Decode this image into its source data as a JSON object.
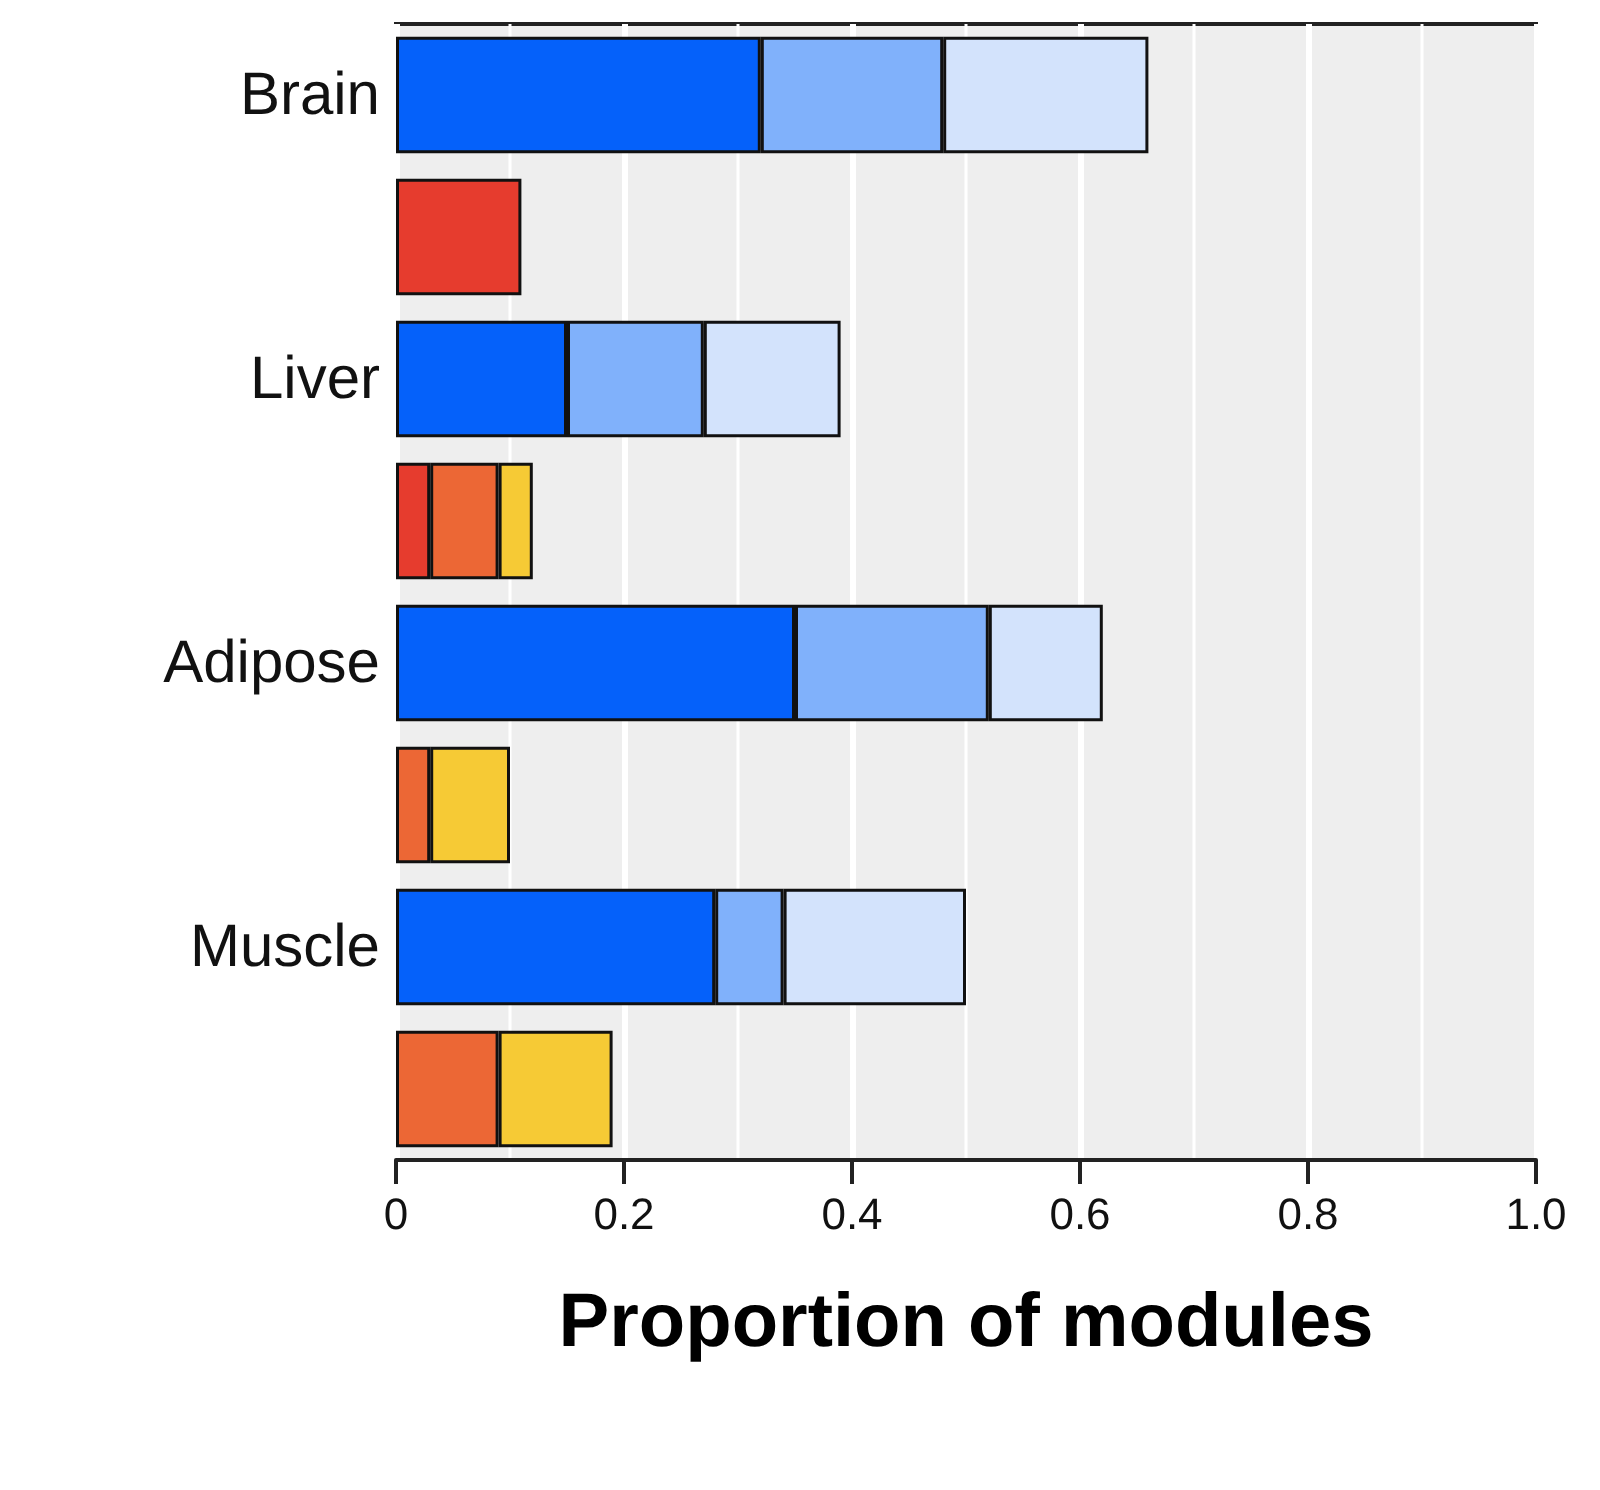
{
  "chart_data": {
    "type": "bar",
    "orientation": "horizontal",
    "stacked": true,
    "xlabel": "Proportion of modules",
    "categories": [
      "Brain",
      null,
      "Liver",
      null,
      "Adipose",
      null,
      "Muscle",
      null
    ],
    "series": [
      {
        "color": "#0561fa",
        "values": [
          0.32,
          null,
          0.15,
          null,
          0.35,
          null,
          0.28,
          null
        ]
      },
      {
        "color": "#80b1fb",
        "values": [
          0.16,
          null,
          0.12,
          null,
          0.17,
          null,
          0.06,
          null
        ]
      },
      {
        "color": "#d3e3fc",
        "values": [
          0.18,
          null,
          0.12,
          null,
          0.1,
          null,
          0.16,
          null
        ]
      },
      {
        "color": "#e63c2e",
        "values": [
          null,
          0.11,
          null,
          0.03,
          null,
          null,
          null,
          null
        ]
      },
      {
        "color": "#ec6735",
        "values": [
          null,
          null,
          null,
          0.06,
          null,
          0.03,
          null,
          0.09
        ]
      },
      {
        "color": "#f6ca35",
        "values": [
          null,
          null,
          null,
          0.03,
          null,
          0.07,
          null,
          0.1
        ]
      }
    ],
    "xlim": [
      0,
      1
    ],
    "xticks": [
      {
        "value": 0,
        "label": "0"
      },
      0.2,
      0.4,
      0.6,
      0.8,
      {
        "value": 1,
        "label": "1.0"
      }
    ],
    "grid": "x",
    "legend": false
  }
}
